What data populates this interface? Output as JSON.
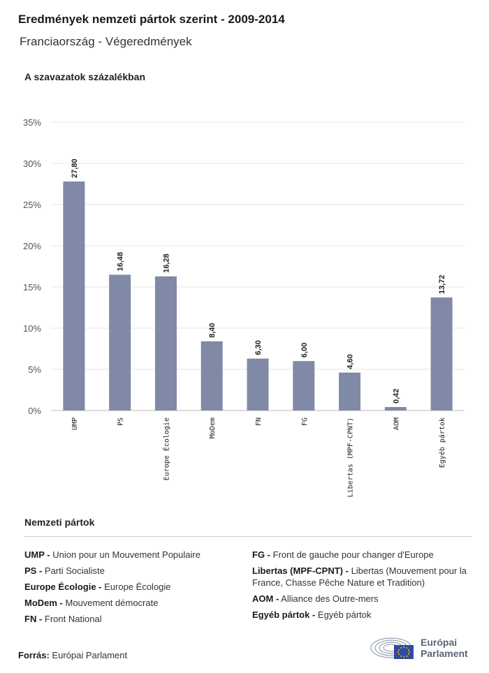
{
  "header": {
    "title": "Eredmények nemzeti pártok szerint - 2009-2014",
    "subtitle": "Franciaország - Végeredmények",
    "axis_caption": "A szavazatok százalékban"
  },
  "chart_data": {
    "type": "bar",
    "categories": [
      "UMP",
      "PS",
      "Europe Écologie",
      "MoDem",
      "FN",
      "FG",
      "Libertas (MPF-CPNT)",
      "AOM",
      "Egyéb pártok"
    ],
    "values": [
      27.8,
      16.48,
      16.28,
      8.4,
      6.3,
      6.0,
      4.6,
      0.42,
      13.72
    ],
    "value_labels": [
      "27,80",
      "16,48",
      "16,28",
      "8,40",
      "6,30",
      "6,00",
      "4,60",
      "0,42",
      "13,72"
    ],
    "ylim": [
      0,
      35
    ],
    "yticks": [
      0,
      5,
      10,
      15,
      20,
      25,
      30,
      35
    ],
    "ytick_labels": [
      "0%",
      "5%",
      "10%",
      "15%",
      "20%",
      "25%",
      "30%",
      "35%"
    ],
    "grid": true,
    "bar_color": "#8089a5",
    "ylabel": "A szavazatok százalékban"
  },
  "legend": {
    "title": "Nemzeti pártok",
    "left": [
      {
        "abbr": "UMP -",
        "name": "Union pour un Mouvement Populaire"
      },
      {
        "abbr": "PS -",
        "name": "Parti Socialiste"
      },
      {
        "abbr": "Europe Écologie -",
        "name": "Europe Écologie"
      },
      {
        "abbr": "MoDem -",
        "name": "Mouvement démocrate"
      },
      {
        "abbr": "FN -",
        "name": "Front National"
      }
    ],
    "right": [
      {
        "abbr": "FG -",
        "name": "Front de gauche pour changer d'Europe"
      },
      {
        "abbr": "Libertas (MPF-CPNT) -",
        "name": "Libertas (Mouvement pour la France, Chasse Pêche Nature et Tradition)"
      },
      {
        "abbr": "AOM -",
        "name": "Alliance des Outre-mers"
      },
      {
        "abbr": "Egyéb pártok -",
        "name": "Egyéb pártok"
      }
    ]
  },
  "footer": {
    "source_label": "Forrás:",
    "source_value": "Európai Parlament",
    "logo_line1": "Európai",
    "logo_line2": "Parlament"
  }
}
